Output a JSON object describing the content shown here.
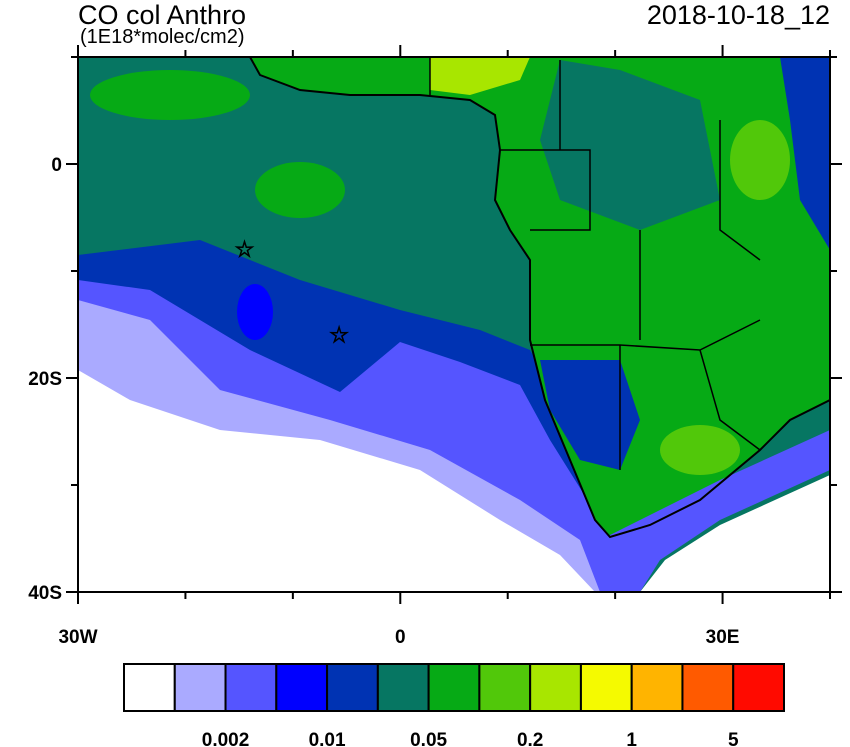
{
  "title": "CO col Anthro",
  "units": "(1E18*molec/cm2)",
  "timestamp": "2018-10-18_12",
  "axes": {
    "lon_ticks": [
      "30W",
      "0",
      "30E"
    ],
    "lat_ticks": [
      "0",
      "20S",
      "40S"
    ],
    "lon_range": [
      -30,
      40
    ],
    "lat_range": [
      -40,
      10
    ]
  },
  "markers": [
    {
      "type": "star",
      "lon": -14.5,
      "lat": -8
    },
    {
      "type": "star",
      "lon": -5.7,
      "lat": -16
    }
  ],
  "colorbar": {
    "colors": [
      "#ffffff",
      "#aaaaff",
      "#5555ff",
      "#0000ff",
      "#0033b3",
      "#067662",
      "#06aa15",
      "#51c80a",
      "#a8e600",
      "#f5fa00",
      "#ffb400",
      "#ff5a00",
      "#ff0a00"
    ],
    "labels": [
      "0.002",
      "0.01",
      "0.05",
      "0.2",
      "1",
      "5"
    ]
  }
}
